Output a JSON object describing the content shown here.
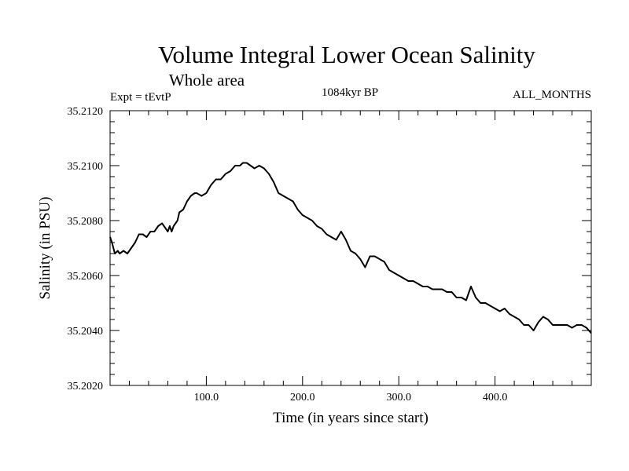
{
  "chart_data": {
    "type": "line",
    "title": "Volume Integral Lower Ocean Salinity",
    "subtitle": "Whole area",
    "left_label": "Expt = tEvtP",
    "center_label": "1084kyr BP",
    "right_label": "ALL_MONTHS",
    "xlabel": "Time (in years since start)",
    "ylabel": "Salinity (in PSU)",
    "xlim": [
      0,
      500
    ],
    "ylim": [
      35.202,
      35.212
    ],
    "x_major_ticks": [
      100,
      200,
      300,
      400
    ],
    "x_major_tick_labels": [
      "100.0",
      "200.0",
      "300.0",
      "400.0"
    ],
    "y_major_ticks": [
      35.202,
      35.204,
      35.206,
      35.208,
      35.21,
      35.212
    ],
    "y_major_tick_labels": [
      "35.2020",
      "35.2040",
      "35.2060",
      "35.2080",
      "35.2100",
      "35.2120"
    ],
    "series": [
      {
        "name": "salinity",
        "x": [
          0,
          2,
          5,
          8,
          10,
          14,
          18,
          22,
          26,
          30,
          34,
          38,
          42,
          46,
          50,
          54,
          58,
          60,
          62,
          64,
          66,
          70,
          72,
          76,
          80,
          84,
          88,
          90,
          95,
          100,
          105,
          110,
          115,
          120,
          125,
          130,
          135,
          138,
          142,
          146,
          150,
          155,
          160,
          165,
          170,
          175,
          180,
          185,
          190,
          195,
          200,
          205,
          210,
          215,
          220,
          225,
          230,
          235,
          240,
          245,
          250,
          255,
          260,
          265,
          270,
          275,
          280,
          285,
          290,
          295,
          300,
          305,
          310,
          315,
          320,
          325,
          330,
          335,
          340,
          345,
          350,
          355,
          360,
          365,
          370,
          372,
          375,
          380,
          385,
          390,
          395,
          400,
          405,
          410,
          415,
          420,
          425,
          430,
          435,
          440,
          445,
          450,
          455,
          460,
          465,
          470,
          475,
          480,
          485,
          490,
          495,
          500
        ],
        "values": [
          35.2074,
          35.2072,
          35.2068,
          35.2069,
          35.2068,
          35.2069,
          35.2068,
          35.207,
          35.2072,
          35.2075,
          35.2075,
          35.2074,
          35.2076,
          35.2076,
          35.2078,
          35.2079,
          35.2077,
          35.2076,
          35.2078,
          35.2076,
          35.2078,
          35.208,
          35.2083,
          35.2084,
          35.2087,
          35.2089,
          35.209,
          35.209,
          35.2089,
          35.209,
          35.2093,
          35.2095,
          35.2095,
          35.2097,
          35.2098,
          35.21,
          35.21,
          35.2101,
          35.2101,
          35.21,
          35.2099,
          35.21,
          35.2099,
          35.2097,
          35.2094,
          35.209,
          35.2089,
          35.2088,
          35.2087,
          35.2084,
          35.2082,
          35.2081,
          35.208,
          35.2078,
          35.2077,
          35.2075,
          35.2074,
          35.2073,
          35.2076,
          35.2073,
          35.2069,
          35.2068,
          35.2066,
          35.2063,
          35.2067,
          35.2067,
          35.2066,
          35.2065,
          35.2062,
          35.2061,
          35.206,
          35.2059,
          35.2058,
          35.2058,
          35.2057,
          35.2056,
          35.2056,
          35.2055,
          35.2055,
          35.2055,
          35.2054,
          35.2054,
          35.2052,
          35.2052,
          35.2051,
          35.2053,
          35.2056,
          35.2052,
          35.205,
          35.205,
          35.2049,
          35.2048,
          35.2047,
          35.2048,
          35.2046,
          35.2045,
          35.2044,
          35.2042,
          35.2042,
          35.204,
          35.2043,
          35.2045,
          35.2044,
          35.2042,
          35.2042,
          35.2042,
          35.2042,
          35.2041,
          35.2042,
          35.2042,
          35.2041,
          35.2039
        ]
      }
    ]
  }
}
